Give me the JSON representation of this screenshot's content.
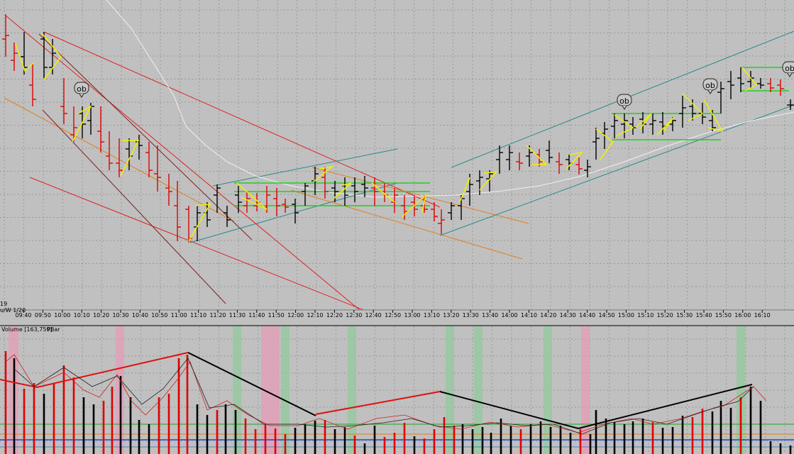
{
  "chart_data": [
    {
      "type": "ohlc",
      "title": "",
      "time_axis": {
        "ticks": [
          "09:40",
          "09:50",
          "10:00",
          "10:10",
          "10:20",
          "10:30",
          "10:40",
          "10:50",
          "11:00",
          "11:10",
          "11:20",
          "11:30",
          "11:40",
          "11:50",
          "12:00",
          "12:10",
          "12:20",
          "12:30",
          "12:40",
          "12:50",
          "13:00",
          "13:10",
          "13:20",
          "13:30",
          "13:40",
          "14:00",
          "14:10",
          "14:20",
          "14:30",
          "14:40",
          "14:50",
          "15:00",
          "15:10",
          "15:20",
          "15:30",
          "15:40",
          "15:50",
          "16:00",
          "16:10"
        ],
        "edge_labels": [
          "19",
          "u/W 1/20"
        ]
      },
      "grid": true,
      "markers": [
        {
          "label": "ob",
          "x": "10:10"
        },
        {
          "label": "ob",
          "x": "14:50"
        },
        {
          "label": "ob",
          "x": "15:30"
        },
        {
          "label": "ob",
          "x": "16:10"
        }
      ]
    },
    {
      "type": "bar",
      "title": "Volume [163,759]",
      "subtitle": "PBar",
      "grid": true
    }
  ]
}
